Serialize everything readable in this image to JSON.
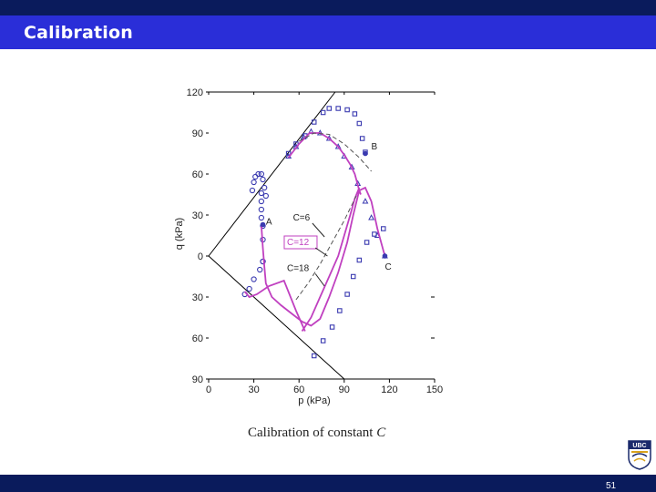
{
  "slide": {
    "title": "Calibration",
    "caption_main": "Calibration of constant ",
    "caption_var": "C",
    "page_number": "51",
    "logo_text": "UBC"
  },
  "colors": {
    "title_bar": "#2a2ed8",
    "dark_rule": "#0a1b5c",
    "predicted": "#c040c0",
    "measured": "#3a3ab0",
    "axis": "#000000"
  },
  "chart_data": {
    "type": "line",
    "xlabel": "p (kPa)",
    "ylabel": "q (kPa)",
    "xlim": [
      0,
      150
    ],
    "ylim": [
      -90,
      120
    ],
    "x_ticks": [
      0,
      30,
      60,
      90,
      120,
      150
    ],
    "x_tick_labels": [
      "0",
      "30",
      "60",
      "90",
      "120",
      "150"
    ],
    "y_ticks": [
      120,
      90,
      60,
      30,
      0,
      -30,
      -60,
      -90
    ],
    "y_tick_labels": [
      "120",
      "90",
      "60",
      "30",
      "0",
      "30",
      "60",
      "90"
    ],
    "annotations": [
      {
        "text": "A",
        "x": 38,
        "y": 23
      },
      {
        "text": "B",
        "x": 108,
        "y": 78
      },
      {
        "text": "C",
        "x": 117,
        "y": -10
      },
      {
        "text": "C=6",
        "x": 56,
        "y": 26
      },
      {
        "text": "C=12",
        "x": 52,
        "y": 8,
        "boxed": true
      },
      {
        "text": "C=18",
        "x": 52,
        "y": -11
      }
    ],
    "envelope": [
      {
        "x": [
          0,
          84
        ],
        "y": [
          0,
          120
        ]
      },
      {
        "x": [
          0,
          90
        ],
        "y": [
          0,
          -90
        ]
      }
    ],
    "series": [
      {
        "style": "measured-circles",
        "x": [
          29,
          30,
          31,
          33,
          35,
          36,
          37,
          38
        ],
        "y": [
          48,
          54,
          58,
          60,
          60,
          56,
          50,
          44
        ]
      },
      {
        "style": "measured-circles",
        "x": [
          35,
          35,
          35,
          35,
          36,
          36,
          36
        ],
        "y": [
          46,
          40,
          34,
          28,
          22,
          12,
          -4
        ]
      },
      {
        "style": "measured-circles",
        "x": [
          36,
          34,
          30,
          27,
          24
        ],
        "y": [
          -4,
          -10,
          -17,
          -24,
          -28
        ]
      },
      {
        "style": "measured-squares",
        "x": [
          53,
          58,
          64,
          70,
          76,
          80,
          86,
          92,
          97,
          100,
          102,
          104
        ],
        "y": [
          75,
          82,
          88,
          98,
          105,
          108,
          108,
          107,
          104,
          97,
          86,
          76
        ]
      },
      {
        "style": "measured-triangles",
        "x": [
          53,
          58,
          63,
          68,
          74,
          80,
          86,
          90,
          95,
          99,
          104,
          108,
          112,
          117
        ],
        "y": [
          73,
          80,
          87,
          91,
          90,
          86,
          80,
          73,
          65,
          53,
          40,
          28,
          15,
          0
        ]
      },
      {
        "style": "measured-squares",
        "x": [
          70,
          76,
          82,
          87,
          92,
          96,
          100,
          105,
          110,
          116
        ],
        "y": [
          -73,
          -62,
          -52,
          -40,
          -28,
          -15,
          -3,
          10,
          16,
          20
        ]
      },
      {
        "style": "predicted-solid",
        "x": [
          35,
          36,
          37,
          38,
          42,
          48,
          55,
          62,
          68,
          74,
          80,
          86,
          92,
          96,
          100,
          104,
          108,
          112,
          117
        ],
        "y": [
          22,
          6,
          -8,
          -20,
          -30,
          -36,
          -42,
          -48,
          -51,
          -46,
          -30,
          -12,
          10,
          30,
          48,
          50,
          40,
          20,
          0
        ]
      },
      {
        "style": "predicted-solid",
        "x": [
          24,
          27,
          32,
          40,
          50,
          58,
          64
        ],
        "y": [
          -26,
          -30,
          -28,
          -22,
          -18,
          -40,
          -55
        ]
      },
      {
        "style": "predicted-solid",
        "x": [
          53,
          60,
          67,
          74,
          80,
          86,
          90,
          94,
          97,
          99,
          100,
          101
        ],
        "y": [
          72,
          82,
          90,
          90,
          86,
          80,
          74,
          67,
          60,
          52,
          48,
          45
        ]
      },
      {
        "style": "predicted-solid",
        "x": [
          62,
          68,
          74,
          80,
          86,
          90,
          94,
          97,
          100
        ],
        "y": [
          -55,
          -45,
          -30,
          -15,
          0,
          15,
          30,
          42,
          50
        ]
      },
      {
        "style": "predicted-dashed",
        "x": [
          58,
          66,
          74,
          82,
          90,
          98
        ],
        "y": [
          -32,
          -20,
          -6,
          10,
          26,
          44
        ]
      },
      {
        "style": "predicted-dashed",
        "x": [
          60,
          70,
          80,
          90,
          100,
          108
        ],
        "y": [
          84,
          90,
          89,
          82,
          72,
          62
        ]
      }
    ],
    "markers": [
      {
        "label": "A",
        "x": 36,
        "y": 23
      },
      {
        "label": "B",
        "x": 104,
        "y": 75
      },
      {
        "label": "C",
        "x": 117,
        "y": 0
      }
    ],
    "grid": false,
    "legend": "none"
  }
}
